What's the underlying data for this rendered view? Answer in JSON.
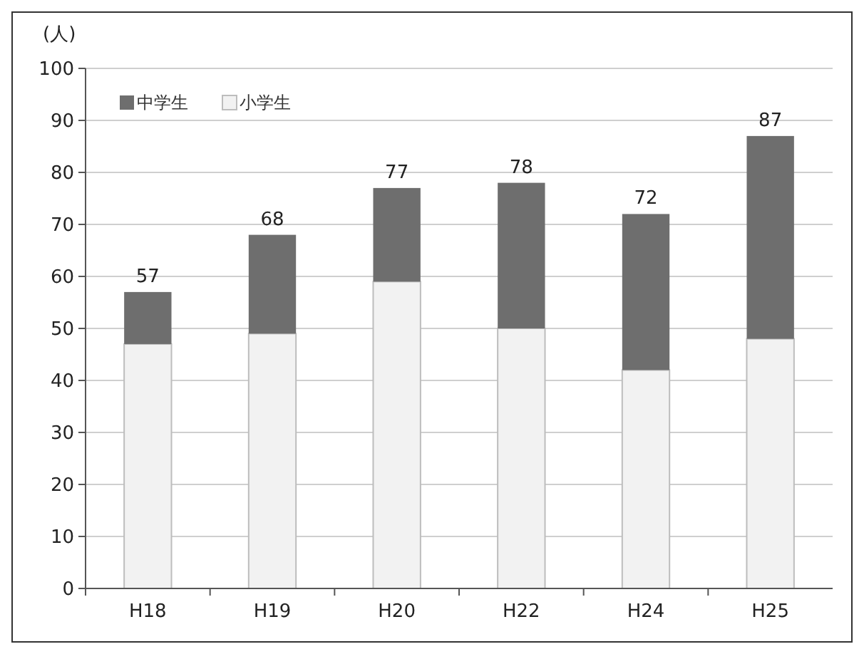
{
  "chart_data": {
    "type": "bar",
    "ylabel": "(人)",
    "categories": [
      "H18",
      "H19",
      "H20",
      "H22",
      "H24",
      "H25"
    ],
    "stacked": true,
    "series": [
      {
        "name": "小学生",
        "color": "#f2f2f2",
        "values": [
          47,
          49,
          59,
          50,
          42,
          48
        ]
      },
      {
        "name": "中学生",
        "color": "#6e6e6e",
        "values": [
          10,
          19,
          18,
          28,
          30,
          39
        ]
      }
    ],
    "totals": [
      "57",
      "68",
      "77",
      "78",
      "72",
      "87"
    ],
    "ylim": [
      0,
      100
    ],
    "yticks": [
      0,
      10,
      20,
      30,
      40,
      50,
      60,
      70,
      80,
      90,
      100
    ],
    "grid": "y",
    "legend": "top left"
  }
}
